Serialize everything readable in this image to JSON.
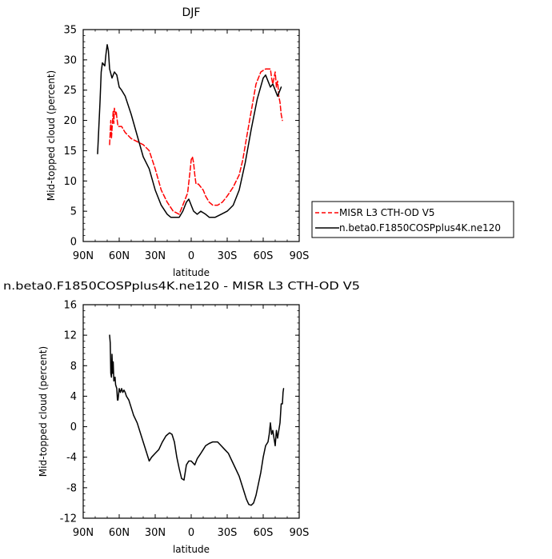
{
  "chart_data": [
    {
      "type": "line",
      "title": "DJF",
      "xlabel": "latitude",
      "ylabel": "Mid-topped cloud (percent)",
      "xlim": [
        90,
        -90
      ],
      "ylim": [
        0,
        35
      ],
      "xticks": [
        {
          "value": 90,
          "label": "90N"
        },
        {
          "value": 60,
          "label": "60N"
        },
        {
          "value": 30,
          "label": "30N"
        },
        {
          "value": 0,
          "label": "0"
        },
        {
          "value": -30,
          "label": "30S"
        },
        {
          "value": -60,
          "label": "60S"
        },
        {
          "value": -90,
          "label": "90S"
        }
      ],
      "yticks": [
        0,
        5,
        10,
        15,
        20,
        25,
        30,
        35
      ],
      "legend_position": "right",
      "series": [
        {
          "name": "MISR L3 CTH-OD V5",
          "color": "#ff0000",
          "dash": "dashed",
          "points": [
            [
              68,
              16.0
            ],
            [
              67,
              20.0
            ],
            [
              66.5,
              17.0
            ],
            [
              66,
              18.5
            ],
            [
              65,
              21.5
            ],
            [
              64.5,
              19.5
            ],
            [
              64,
              22.0
            ],
            [
              63,
              21.0
            ],
            [
              62.5,
              21.5
            ],
            [
              62,
              20.5
            ],
            [
              61,
              19.0
            ],
            [
              58,
              19.0
            ],
            [
              55,
              18.0
            ],
            [
              50,
              17.0
            ],
            [
              45,
              16.5
            ],
            [
              40,
              16.0
            ],
            [
              35,
              15.0
            ],
            [
              30,
              12.0
            ],
            [
              25,
              8.5
            ],
            [
              20,
              6.5
            ],
            [
              15,
              5.0
            ],
            [
              10,
              4.5
            ],
            [
              6,
              6.5
            ],
            [
              3,
              8.0
            ],
            [
              1,
              11.5
            ],
            [
              0,
              13.5
            ],
            [
              -1,
              14.0
            ],
            [
              -2,
              13.0
            ],
            [
              -3,
              11.0
            ],
            [
              -4,
              9.5
            ],
            [
              -6,
              9.5
            ],
            [
              -8,
              9.0
            ],
            [
              -10,
              8.5
            ],
            [
              -12,
              7.5
            ],
            [
              -15,
              6.5
            ],
            [
              -18,
              6.0
            ],
            [
              -22,
              6.0
            ],
            [
              -26,
              6.5
            ],
            [
              -30,
              7.5
            ],
            [
              -35,
              9.0
            ],
            [
              -40,
              11.0
            ],
            [
              -43,
              13.5
            ],
            [
              -46,
              17.0
            ],
            [
              -50,
              21.5
            ],
            [
              -54,
              26.0
            ],
            [
              -58,
              28.0
            ],
            [
              -62,
              28.5
            ],
            [
              -66,
              28.5
            ],
            [
              -67,
              27.0
            ],
            [
              -68,
              26.0
            ],
            [
              -69,
              27.0
            ],
            [
              -70,
              28.0
            ],
            [
              -71,
              25.5
            ],
            [
              -72,
              26.5
            ],
            [
              -73,
              24.0
            ],
            [
              -74,
              23.0
            ],
            [
              -75,
              21.0
            ],
            [
              -76,
              20.0
            ]
          ]
        },
        {
          "name": "n.beta0.F1850COSPplus4K.ne120",
          "color": "#000000",
          "dash": "solid",
          "points": [
            [
              78,
              14.5
            ],
            [
              76,
              23.0
            ],
            [
              75,
              28.0
            ],
            [
              74,
              29.5
            ],
            [
              72,
              29.0
            ],
            [
              71,
              31.0
            ],
            [
              70,
              32.5
            ],
            [
              69,
              31.5
            ],
            [
              68,
              28.5
            ],
            [
              66,
              27.0
            ],
            [
              64,
              28.0
            ],
            [
              62,
              27.5
            ],
            [
              60,
              25.5
            ],
            [
              58,
              25.0
            ],
            [
              55,
              24.0
            ],
            [
              50,
              21.0
            ],
            [
              45,
              17.5
            ],
            [
              40,
              14.0
            ],
            [
              35,
              12.0
            ],
            [
              30,
              8.5
            ],
            [
              25,
              6.0
            ],
            [
              20,
              4.5
            ],
            [
              17,
              4.0
            ],
            [
              10,
              4.0
            ],
            [
              7,
              5.0
            ],
            [
              4,
              6.5
            ],
            [
              2,
              7.0
            ],
            [
              0,
              6.0
            ],
            [
              -2,
              5.0
            ],
            [
              -5,
              4.5
            ],
            [
              -8,
              5.0
            ],
            [
              -12,
              4.5
            ],
            [
              -15,
              4.0
            ],
            [
              -20,
              4.0
            ],
            [
              -25,
              4.5
            ],
            [
              -30,
              5.0
            ],
            [
              -35,
              6.0
            ],
            [
              -40,
              8.5
            ],
            [
              -45,
              13.0
            ],
            [
              -50,
              18.5
            ],
            [
              -55,
              23.5
            ],
            [
              -60,
              27.0
            ],
            [
              -62,
              27.5
            ],
            [
              -64,
              26.5
            ],
            [
              -66,
              25.5
            ],
            [
              -68,
              26.0
            ],
            [
              -70,
              25.0
            ],
            [
              -72,
              24.0
            ],
            [
              -74,
              25.0
            ],
            [
              -75,
              25.5
            ]
          ]
        }
      ]
    },
    {
      "type": "line",
      "title": "n.beta0.F1850COSPplus4K.ne120 - MISR L3 CTH-OD V5",
      "xlabel": "latitude",
      "ylabel": "Mid-topped cloud (percent)",
      "xlim": [
        90,
        -90
      ],
      "ylim": [
        -12,
        16
      ],
      "xticks": [
        {
          "value": 90,
          "label": "90N"
        },
        {
          "value": 60,
          "label": "60N"
        },
        {
          "value": 30,
          "label": "30N"
        },
        {
          "value": 0,
          "label": "0"
        },
        {
          "value": -30,
          "label": "30S"
        },
        {
          "value": -60,
          "label": "60S"
        },
        {
          "value": -90,
          "label": "90S"
        }
      ],
      "yticks": [
        -12,
        -8,
        -4,
        0,
        4,
        8,
        12,
        16
      ],
      "series": [
        {
          "color": "#000000",
          "dash": "solid",
          "points": [
            [
              68,
              12.0
            ],
            [
              67.5,
              11.0
            ],
            [
              67,
              7.0
            ],
            [
              66.5,
              6.5
            ],
            [
              66,
              9.5
            ],
            [
              65.5,
              7.0
            ],
            [
              65,
              8.5
            ],
            [
              64.5,
              6.0
            ],
            [
              63.5,
              6.5
            ],
            [
              63,
              5.5
            ],
            [
              62,
              5.0
            ],
            [
              61.5,
              3.5
            ],
            [
              61,
              3.5
            ],
            [
              60,
              5.0
            ],
            [
              59,
              4.5
            ],
            [
              58,
              5.0
            ],
            [
              57,
              4.5
            ],
            [
              56,
              4.8
            ],
            [
              55,
              4.5
            ],
            [
              54,
              4.0
            ],
            [
              52,
              3.5
            ],
            [
              50,
              2.5
            ],
            [
              48,
              1.5
            ],
            [
              45,
              0.5
            ],
            [
              42,
              -1.0
            ],
            [
              40,
              -2.0
            ],
            [
              37,
              -3.5
            ],
            [
              35,
              -4.5
            ],
            [
              33,
              -4.0
            ],
            [
              30,
              -3.5
            ],
            [
              27,
              -3.0
            ],
            [
              24,
              -2.0
            ],
            [
              21,
              -1.2
            ],
            [
              18,
              -0.8
            ],
            [
              16,
              -1.0
            ],
            [
              14,
              -2.0
            ],
            [
              12,
              -4.0
            ],
            [
              10,
              -5.5
            ],
            [
              8,
              -6.8
            ],
            [
              6,
              -7.0
            ],
            [
              5,
              -6.0
            ],
            [
              4,
              -5.0
            ],
            [
              2,
              -4.5
            ],
            [
              0,
              -4.5
            ],
            [
              -3,
              -5.0
            ],
            [
              -5,
              -4.2
            ],
            [
              -8,
              -3.5
            ],
            [
              -10,
              -3.0
            ],
            [
              -12,
              -2.5
            ],
            [
              -15,
              -2.2
            ],
            [
              -18,
              -2.0
            ],
            [
              -22,
              -2.0
            ],
            [
              -25,
              -2.5
            ],
            [
              -28,
              -3.0
            ],
            [
              -31,
              -3.5
            ],
            [
              -34,
              -4.5
            ],
            [
              -37,
              -5.5
            ],
            [
              -40,
              -6.5
            ],
            [
              -42,
              -7.5
            ],
            [
              -44,
              -8.5
            ],
            [
              -46,
              -9.5
            ],
            [
              -48,
              -10.2
            ],
            [
              -50,
              -10.3
            ],
            [
              -52,
              -10.0
            ],
            [
              -54,
              -9.0
            ],
            [
              -56,
              -7.5
            ],
            [
              -58,
              -6.0
            ],
            [
              -60,
              -4.0
            ],
            [
              -62,
              -2.5
            ],
            [
              -64,
              -2.0
            ],
            [
              -65,
              -1.0
            ],
            [
              -66,
              0.5
            ],
            [
              -67,
              -1.0
            ],
            [
              -68,
              -0.5
            ],
            [
              -69,
              -1.5
            ],
            [
              -70,
              -2.5
            ],
            [
              -71,
              -0.5
            ],
            [
              -72,
              -1.5
            ],
            [
              -73,
              -0.5
            ],
            [
              -74,
              0.5
            ],
            [
              -75,
              3.0
            ],
            [
              -76,
              3.0
            ],
            [
              -76.5,
              4.5
            ],
            [
              -77,
              5.0
            ]
          ]
        }
      ]
    }
  ]
}
